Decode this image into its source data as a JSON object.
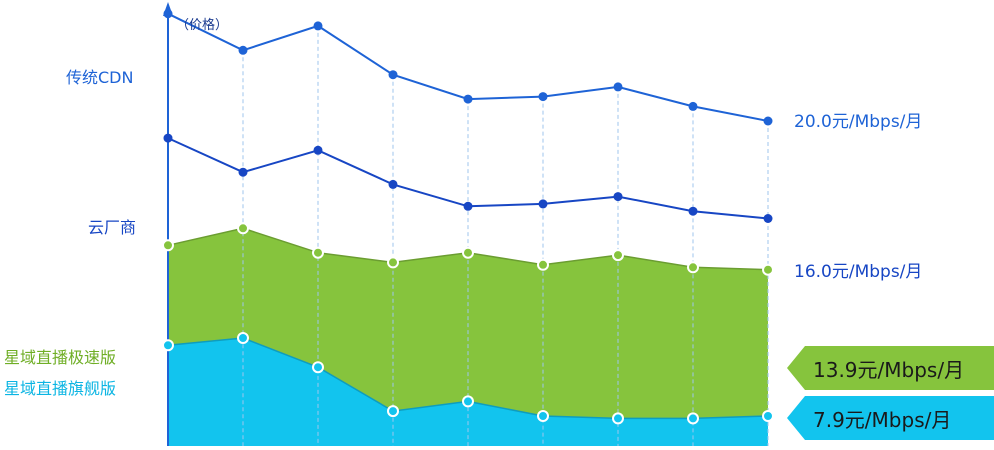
{
  "chart_data": {
    "type": "area",
    "y_axis_label": "（价格）",
    "x": [
      1,
      2,
      3,
      4,
      5,
      6,
      7,
      8,
      9
    ],
    "grid": "vertical-dashed",
    "series": [
      {
        "name": "传统CDN",
        "style": "line",
        "color": "#1e63d6",
        "values": [
          24.4,
          22.9,
          23.9,
          21.9,
          20.9,
          21.0,
          21.4,
          20.6,
          20.0
        ],
        "end_label": "20.0元/Mbps/月"
      },
      {
        "name": "云厂商",
        "style": "line",
        "color": "#1746c4",
        "values": [
          19.3,
          17.9,
          18.8,
          17.4,
          16.5,
          16.6,
          16.9,
          16.3,
          16.0
        ],
        "end_label": "16.0元/Mbps/月"
      },
      {
        "name": "星域直播极速版",
        "style": "area",
        "color": "#86c43d",
        "values": [
          14.9,
          15.6,
          14.6,
          14.2,
          14.6,
          14.1,
          14.5,
          14.0,
          13.9
        ],
        "end_label": "13.9元/Mbps/月"
      },
      {
        "name": "星域直播旗舰版",
        "style": "area",
        "color": "#12c4ee",
        "values": [
          10.8,
          11.1,
          9.9,
          8.1,
          8.5,
          7.9,
          7.8,
          7.8,
          7.9
        ],
        "end_label": "7.9元/Mbps/月"
      }
    ]
  }
}
